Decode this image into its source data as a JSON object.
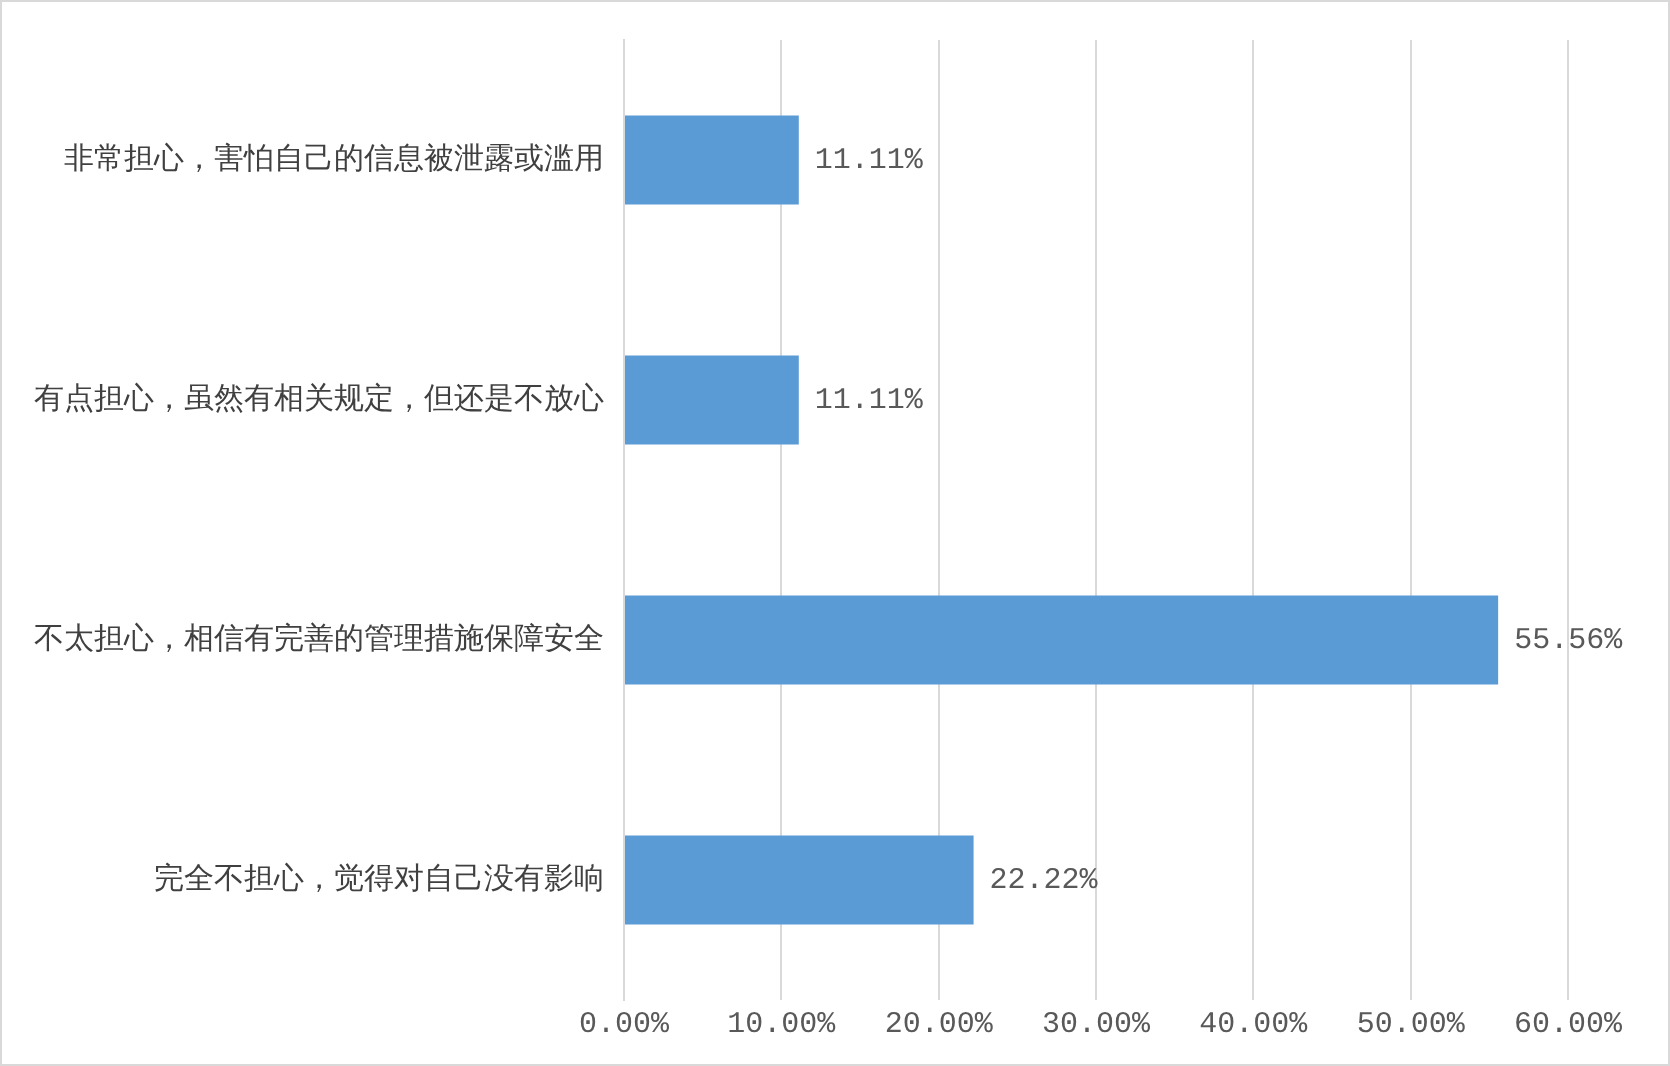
{
  "chart_data": {
    "type": "bar",
    "orientation": "horizontal",
    "categories": [
      "非常担心，害怕自己的信息被泄露或滥用",
      "有点担心，虽然有相关规定，但还是不放心",
      "不太担心，相信有完善的管理措施保障安全",
      "完全不担心，觉得对自己没有影响"
    ],
    "values": [
      11.11,
      11.11,
      55.56,
      22.22
    ],
    "value_labels": [
      "11.11%",
      "11.11%",
      "55.56%",
      "22.22%"
    ],
    "color": "#5b9bd5",
    "xlim": [
      0,
      60
    ],
    "xticks": [
      {
        "value": 0,
        "label": "0.00%"
      },
      {
        "value": 10,
        "label": "10.00%"
      },
      {
        "value": 20,
        "label": "20.00%"
      },
      {
        "value": 30,
        "label": "30.00%"
      },
      {
        "value": 40,
        "label": "40.00%"
      },
      {
        "value": 50,
        "label": "50.00%"
      },
      {
        "value": 60,
        "label": "60.00%"
      }
    ],
    "grid": "x"
  }
}
